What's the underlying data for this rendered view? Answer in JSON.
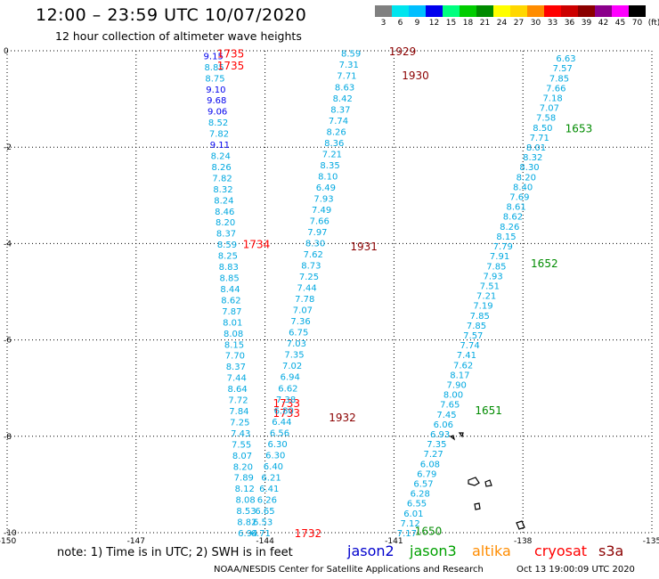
{
  "title": "12:00  –  23:59 UTC 10/07/2020",
  "subtitle": "12 hour collection of altimeter wave heights",
  "scale": {
    "labels": [
      "3",
      "6",
      "9",
      "12",
      "15",
      "18",
      "21",
      "24",
      "27",
      "30",
      "33",
      "36",
      "39",
      "42",
      "45",
      "70",
      "(ft)"
    ],
    "colors": [
      "#808080",
      "#00e5ee",
      "#00bfff",
      "#0000ee",
      "#00ff7f",
      "#00cd00",
      "#008b00",
      "#ffff00",
      "#ffd700",
      "#ff8c00",
      "#ff0000",
      "#cd0000",
      "#8b0000",
      "#8b008b",
      "#ff00ff",
      "#000000"
    ]
  },
  "axes": {
    "x_ticks": [
      "-150",
      "-147",
      "-144",
      "-141",
      "-138",
      "-135"
    ],
    "y_ticks": [
      "0",
      "-2",
      "-4",
      "-6",
      "-8",
      "-10"
    ],
    "xlim": [
      -150,
      -135
    ],
    "ylim": [
      -10,
      0
    ]
  },
  "tracks": [
    {
      "name": "track-1735",
      "satellite": "cryosat",
      "time_labels": [
        {
          "t": "1735",
          "lon": -144.8,
          "lat": -0.05
        },
        {
          "t": "1735",
          "lon": -144.8,
          "lat": -0.3
        },
        {
          "t": "1734",
          "lon": -144.2,
          "lat": -4.0
        },
        {
          "t": "1733",
          "lon": -143.5,
          "lat": -7.3
        },
        {
          "t": "1733",
          "lon": -143.5,
          "lat": -7.5
        },
        {
          "t": "1732",
          "lon": -143.0,
          "lat": -10.0
        }
      ],
      "start": [
        -145.2,
        -0.1
      ],
      "end": [
        -144.4,
        -10.0
      ],
      "values": [
        "9.15",
        "8.85",
        "8.75",
        "9.10",
        "9.68",
        "9.06",
        "8.52",
        "7.82",
        "9.11",
        "8.24",
        "8.26",
        "7.82",
        "8.32",
        "8.24",
        "8.46",
        "8.20",
        "8.37",
        "8.59",
        "8.25",
        "8.83",
        "8.85",
        "8.44",
        "8.62",
        "7.87",
        "8.01",
        "8.08",
        "8.15",
        "7.70",
        "8.37",
        "7.44",
        "8.64",
        "7.72",
        "7.84",
        "7.25",
        "7.43",
        "7.55",
        "8.07",
        "8.20",
        "7.89",
        "8.12",
        "8.08",
        "8.53",
        "8.82",
        "6.94"
      ]
    },
    {
      "name": "track-1930",
      "satellite": "cryosat",
      "time_labels": [
        {
          "t": "1929",
          "lon": -140.8,
          "lat": 0.0
        },
        {
          "t": "1930",
          "lon": -140.5,
          "lat": -0.5
        },
        {
          "t": "1931",
          "lon": -141.7,
          "lat": -4.05
        },
        {
          "t": "1932",
          "lon": -142.2,
          "lat": -7.6
        }
      ],
      "start": [
        -142.0,
        -0.05
      ],
      "end": [
        -144.1,
        -10.0
      ],
      "values": [
        "8.59",
        "7.31",
        "7.71",
        "8.63",
        "8.42",
        "8.37",
        "7.74",
        "8.26",
        "8.36",
        "7.21",
        "8.35",
        "8.10",
        "6.49",
        "7.93",
        "7.49",
        "7.66",
        "7.97",
        "8.30",
        "7.62",
        "8.73",
        "7.25",
        "7.44",
        "7.78",
        "7.07",
        "7.36",
        "6.75",
        "7.03",
        "7.35",
        "7.02",
        "6.94",
        "6.62",
        "7.38",
        "6.80",
        "6.44",
        "6.56",
        "6.30",
        "6.30",
        "6.40",
        "6.21",
        "6.41",
        "6.26",
        "6.65",
        "6.53",
        "6.71"
      ]
    },
    {
      "name": "track-1653",
      "satellite": "jason3",
      "time_labels": [
        {
          "t": "1653",
          "lon": -136.7,
          "lat": -1.6
        },
        {
          "t": "1652",
          "lon": -137.5,
          "lat": -4.4
        },
        {
          "t": "1651",
          "lon": -138.8,
          "lat": -7.45
        },
        {
          "t": "1650",
          "lon": -140.2,
          "lat": -9.95
        }
      ],
      "start": [
        -137.0,
        -0.15
      ],
      "end": [
        -140.7,
        -10.0
      ],
      "values": [
        "6.63",
        "7.57",
        "7.85",
        "7.66",
        "7.18",
        "7.07",
        "7.58",
        "8.50",
        "7.71",
        "8.01",
        "8.32",
        "8.30",
        "8.20",
        "8.40",
        "7.69",
        "8.61",
        "8.62",
        "8.26",
        "8.15",
        "7.79",
        "7.91",
        "7.85",
        "7.93",
        "7.51",
        "7.21",
        "7.19",
        "7.85",
        "7.85",
        "7.57",
        "7.74",
        "7.41",
        "7.62",
        "8.17",
        "7.90",
        "8.00",
        "7.65",
        "7.45",
        "6.06",
        "6.93",
        "7.35",
        "7.27",
        "6.08",
        "6.79",
        "6.57",
        "6.28",
        "6.55",
        "6.01",
        "7.12",
        "7.17"
      ]
    }
  ],
  "legend": {
    "note": "note:  1) Time is in UTC;  2) SWH is in feet",
    "satellites": [
      {
        "name": "jason2",
        "color": "#0000cd"
      },
      {
        "name": "jason3",
        "color": "#00a000"
      },
      {
        "name": "altika",
        "color": "#ff8c00"
      },
      {
        "name": "cryosat",
        "color": "#ff0000"
      },
      {
        "name": "s3a",
        "color": "#8b0000"
      }
    ]
  },
  "credit": "NOAA/NESDIS Center for Satellite Applications and Research",
  "timestamp": "Oct 13 19:00:09 UTC 2020"
}
